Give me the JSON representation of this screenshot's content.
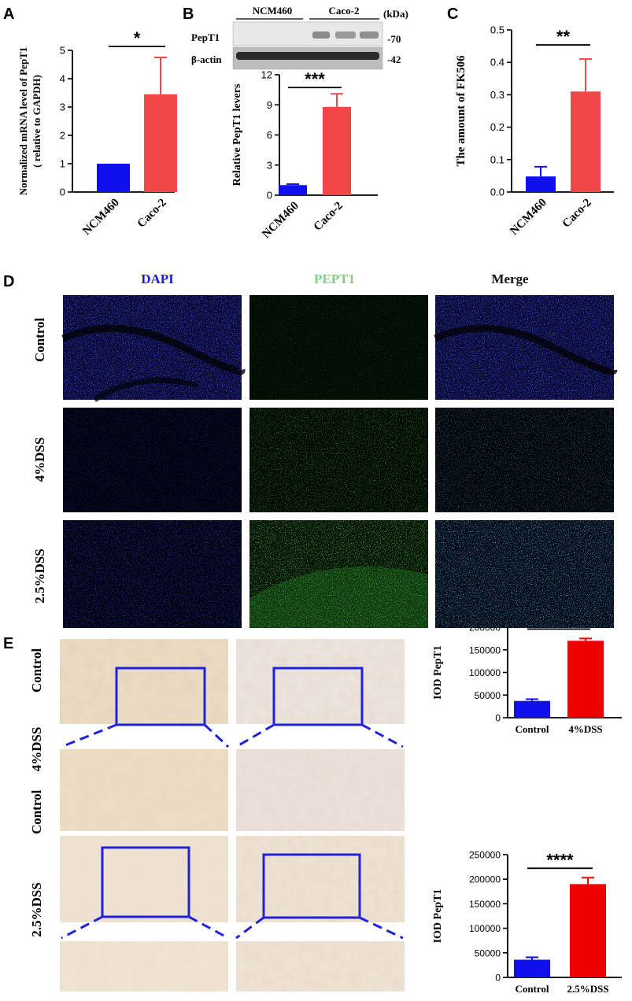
{
  "panel_labels": {
    "a": "A",
    "b": "B",
    "c": "C",
    "d": "D",
    "e": "E"
  },
  "colors": {
    "blue": "#1010ee",
    "red": "#f04848",
    "red_bright": "#ee0000"
  },
  "panel_b_blot": {
    "lanes": [
      "NCM460",
      "Caco-2"
    ],
    "unit": "(kDa)",
    "rows": [
      {
        "label": "PepT1",
        "kda": "-70"
      },
      {
        "label": "β-actin",
        "kda": "-42"
      }
    ]
  },
  "panel_d": {
    "columns": [
      {
        "label": "DAPI",
        "color": "#1a1ae0"
      },
      {
        "label": "PEPT1",
        "color": "#7ed07e"
      },
      {
        "label": "Merge",
        "color": "#111111"
      }
    ],
    "rows": [
      "Control",
      "4%DSS",
      "2.5%DSS"
    ]
  },
  "panel_e": {
    "row_labels": [
      "Control",
      "4%DSS",
      "Control",
      "2.5%DSS"
    ]
  },
  "chart_data": [
    {
      "id": "A",
      "type": "bar",
      "categories": [
        "NCM460",
        "Caco-2"
      ],
      "values": [
        1.0,
        3.45
      ],
      "errors": [
        0,
        1.3
      ],
      "ylabel": "Normalized mRNA level of PepT1\n( relative to GAPDH)",
      "ylim": [
        0,
        5
      ],
      "yticks": [
        "0",
        "1",
        "2",
        "3",
        "4",
        "5"
      ],
      "significance": "*",
      "colors": [
        "#1010ee",
        "#f04848"
      ]
    },
    {
      "id": "B",
      "type": "bar",
      "categories": [
        "NCM460",
        "Caco-2"
      ],
      "values": [
        1.0,
        8.8
      ],
      "errors": [
        0.1,
        1.3
      ],
      "ylabel": "Relative PepT1 levers",
      "ylim": [
        0,
        12
      ],
      "yticks": [
        "0",
        "3",
        "6",
        "9",
        "12"
      ],
      "significance": "***",
      "colors": [
        "#1010ee",
        "#f04848"
      ]
    },
    {
      "id": "C",
      "type": "bar",
      "categories": [
        "NCM460",
        "Caco-2"
      ],
      "values": [
        0.048,
        0.31
      ],
      "errors": [
        0.03,
        0.1
      ],
      "ylabel": "The amount of FK506",
      "ylim": [
        0,
        0.5
      ],
      "yticks": [
        "0.0",
        "0.1",
        "0.2",
        "0.3",
        "0.4",
        "0.5"
      ],
      "significance": "**",
      "colors": [
        "#1010ee",
        "#f04848"
      ]
    },
    {
      "id": "E1",
      "type": "bar",
      "categories": [
        "Control",
        "4%DSS"
      ],
      "values": [
        37000,
        170000
      ],
      "errors": [
        4000,
        5000
      ],
      "ylabel": "IOD PepT1",
      "ylim": [
        0,
        200000
      ],
      "yticks": [
        "0",
        "50000",
        "100000",
        "150000",
        "200000"
      ],
      "significance": "****",
      "colors": [
        "#1010ee",
        "#ee0000"
      ]
    },
    {
      "id": "E2",
      "type": "bar",
      "categories": [
        "Control",
        "2.5%DSS"
      ],
      "values": [
        36000,
        190000
      ],
      "errors": [
        5000,
        13000
      ],
      "ylabel": "IOD PepT1",
      "ylim": [
        0,
        250000
      ],
      "yticks": [
        "0",
        "50000",
        "100000",
        "150000",
        "200000",
        "250000"
      ],
      "significance": "****",
      "colors": [
        "#1010ee",
        "#ee0000"
      ]
    }
  ]
}
